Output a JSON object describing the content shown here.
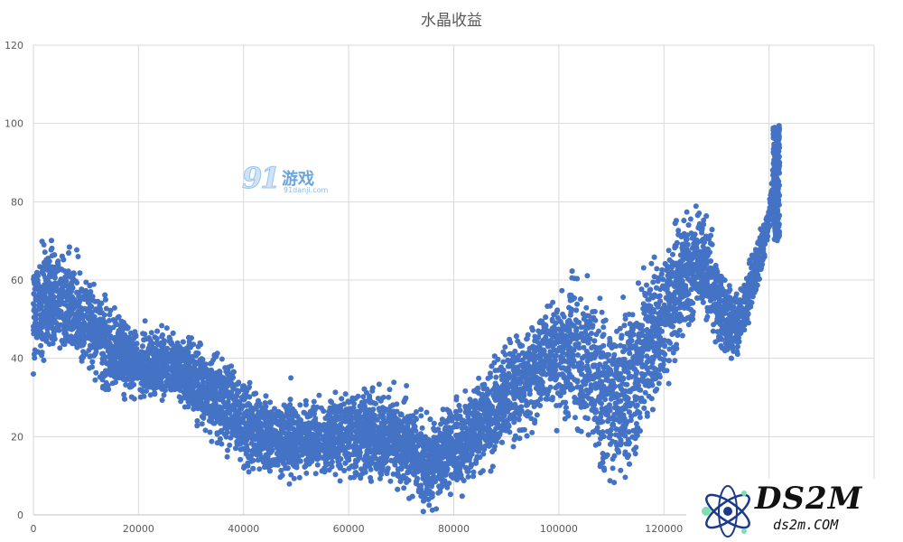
{
  "chart_data": {
    "type": "scatter",
    "title": "水晶收益",
    "xlabel": "",
    "ylabel": "",
    "xlim": [
      0,
      160000
    ],
    "ylim": [
      0,
      120
    ],
    "x_ticks": [
      0,
      20000,
      40000,
      60000,
      80000,
      100000,
      120000
    ],
    "y_ticks": [
      0,
      20,
      40,
      60,
      80,
      100,
      120
    ],
    "grid": true,
    "legend": "none",
    "marker_color": "#4472C4",
    "trend": [
      {
        "x": 0,
        "y": 52,
        "spread": 6
      },
      {
        "x": 3000,
        "y": 56,
        "spread": 6
      },
      {
        "x": 8000,
        "y": 52,
        "spread": 6
      },
      {
        "x": 14000,
        "y": 43,
        "spread": 5
      },
      {
        "x": 20000,
        "y": 38,
        "spread": 4
      },
      {
        "x": 27000,
        "y": 38,
        "spread": 4
      },
      {
        "x": 33000,
        "y": 32,
        "spread": 5
      },
      {
        "x": 40000,
        "y": 23,
        "spread": 5
      },
      {
        "x": 48000,
        "y": 19,
        "spread": 4
      },
      {
        "x": 56000,
        "y": 20,
        "spread": 4
      },
      {
        "x": 63000,
        "y": 21,
        "spread": 5
      },
      {
        "x": 68000,
        "y": 20,
        "spread": 5
      },
      {
        "x": 75000,
        "y": 13,
        "spread": 5
      },
      {
        "x": 82000,
        "y": 19,
        "spread": 5
      },
      {
        "x": 90000,
        "y": 30,
        "spread": 6
      },
      {
        "x": 97000,
        "y": 40,
        "spread": 6
      },
      {
        "x": 103000,
        "y": 42,
        "spread": 8
      },
      {
        "x": 108000,
        "y": 32,
        "spread": 10
      },
      {
        "x": 113000,
        "y": 33,
        "spread": 10
      },
      {
        "x": 119000,
        "y": 48,
        "spread": 8
      },
      {
        "x": 124000,
        "y": 62,
        "spread": 7
      },
      {
        "x": 127000,
        "y": 66,
        "spread": 6
      },
      {
        "x": 131000,
        "y": 52,
        "spread": 5
      },
      {
        "x": 134000,
        "y": 48,
        "spread": 4
      },
      {
        "x": 137000,
        "y": 60,
        "spread": 3
      },
      {
        "x": 140000,
        "y": 75,
        "spread": 2
      },
      {
        "x": 141500,
        "y": 95,
        "spread": 1.5
      },
      {
        "x": 142000,
        "y": 98,
        "spread": 1
      }
    ],
    "outliers": [
      {
        "x": 0,
        "y": 36
      },
      {
        "x": 2000,
        "y": 69
      },
      {
        "x": 8500,
        "y": 66
      },
      {
        "x": 49000,
        "y": 35
      },
      {
        "x": 41000,
        "y": 11
      },
      {
        "x": 71000,
        "y": 33
      },
      {
        "x": 74000,
        "y": 5
      }
    ]
  },
  "watermarks": {
    "site1_big": "91",
    "site1_cn": "游戏",
    "site1_url": "91danji.com",
    "site2_name": "DS2M",
    "site2_url": "ds2m.COM"
  }
}
